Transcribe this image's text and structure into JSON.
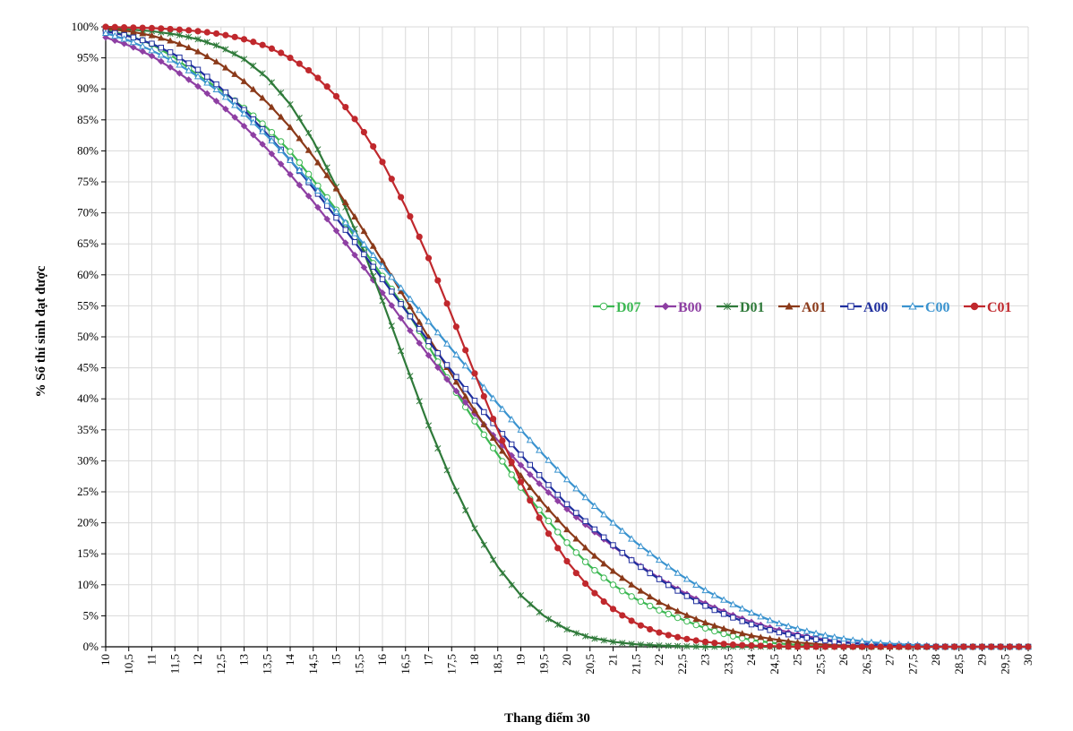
{
  "chart_data": {
    "type": "line",
    "title": "",
    "xlabel": "Thang điểm 30",
    "ylabel": "% Số thí sinh đạt được",
    "xlim": [
      10,
      30
    ],
    "ylim": [
      0,
      100
    ],
    "grid": true,
    "legend_position": "center-right",
    "x_ticks": [
      10,
      10.5,
      11,
      11.5,
      12,
      12.5,
      13,
      13.5,
      14,
      14.5,
      15,
      15.5,
      16,
      16.5,
      17,
      17.5,
      18,
      18.5,
      19,
      19.5,
      20,
      20.5,
      21,
      21.5,
      22,
      22.5,
      23,
      23.5,
      24,
      24.5,
      25,
      25.5,
      26,
      26.5,
      27,
      27.5,
      28,
      28.5,
      29,
      29.5,
      30
    ],
    "x_tick_labels": [
      "10",
      "10,5",
      "11",
      "11,5",
      "12",
      "12,5",
      "13",
      "13,5",
      "14",
      "14,5",
      "15",
      "15,5",
      "16",
      "16,5",
      "17",
      "17,5",
      "18",
      "18,5",
      "19",
      "19,5",
      "20",
      "20,5",
      "21",
      "21,5",
      "22",
      "22,5",
      "23",
      "23,5",
      "24",
      "24,5",
      "25",
      "25,5",
      "26",
      "26,5",
      "27",
      "27,5",
      "28",
      "28,5",
      "29",
      "29,5",
      "30"
    ],
    "y_ticks": [
      0,
      5,
      10,
      15,
      20,
      25,
      30,
      35,
      40,
      45,
      50,
      55,
      60,
      65,
      70,
      75,
      80,
      85,
      90,
      95,
      100
    ],
    "y_tick_labels": [
      "0%",
      "5%",
      "10%",
      "15%",
      "20%",
      "25%",
      "30%",
      "35%",
      "40%",
      "45%",
      "50%",
      "55%",
      "60%",
      "65%",
      "70%",
      "75%",
      "80%",
      "85%",
      "90%",
      "95%",
      "100%"
    ],
    "x": [
      10,
      10.5,
      11,
      11.5,
      12,
      12.5,
      13,
      13.5,
      14,
      14.5,
      15,
      15.5,
      16,
      16.5,
      17,
      17.5,
      18,
      18.5,
      19,
      19.5,
      20,
      20.5,
      21,
      21.5,
      22,
      22.5,
      23,
      23.5,
      24,
      24.5,
      25,
      25.5,
      26,
      26.5,
      27,
      27.5,
      28,
      28.5,
      29,
      29.5,
      30
    ],
    "series": [
      {
        "name": "D07",
        "color": "#3CB853",
        "marker": "circle-open",
        "values": [
          99.5,
          98.6,
          97.2,
          95.0,
          92.2,
          89.8,
          86.9,
          83.7,
          79.9,
          75.3,
          70.5,
          65.0,
          59.8,
          54.5,
          48.5,
          42.2,
          36.4,
          31.0,
          25.7,
          21.2,
          16.8,
          13.0,
          10.0,
          7.7,
          5.9,
          4.4,
          3.0,
          1.9,
          1.1,
          0.6,
          0.3,
          0.1,
          0.05,
          0,
          0,
          0,
          0,
          0,
          0,
          0,
          0
        ]
      },
      {
        "name": "B00",
        "color": "#8E3FA3",
        "marker": "diamond",
        "values": [
          98.3,
          97.0,
          95.3,
          93.0,
          90.4,
          87.4,
          84.0,
          80.3,
          76.2,
          71.8,
          67.1,
          62.2,
          57.1,
          52.0,
          47.0,
          42.2,
          37.6,
          33.3,
          29.3,
          25.6,
          22.2,
          19.1,
          16.2,
          13.5,
          11.1,
          8.9,
          7.0,
          5.4,
          4.0,
          2.9,
          2.0,
          1.3,
          0.8,
          0.5,
          0.3,
          0.2,
          0.1,
          0,
          0,
          0,
          0
        ]
      },
      {
        "name": "D01",
        "color": "#2F7A3A",
        "marker": "star",
        "values": [
          99.8,
          99.6,
          99.3,
          98.8,
          98.0,
          96.7,
          94.8,
          91.8,
          87.5,
          81.6,
          74.2,
          65.6,
          55.8,
          45.7,
          35.7,
          26.8,
          19.1,
          12.9,
          8.3,
          5.0,
          2.8,
          1.5,
          0.8,
          0.4,
          0.2,
          0.1,
          0,
          0,
          0,
          0,
          0,
          0,
          0,
          0,
          0,
          0,
          0,
          0,
          0,
          0,
          0
        ]
      },
      {
        "name": "A01",
        "color": "#8B3A1A",
        "marker": "triangle",
        "values": [
          99.7,
          99.3,
          98.6,
          97.5,
          96.0,
          93.9,
          91.2,
          87.8,
          83.8,
          79.1,
          73.9,
          68.2,
          62.2,
          56.1,
          49.9,
          43.9,
          38.1,
          32.6,
          27.6,
          23.0,
          18.9,
          15.3,
          12.2,
          9.5,
          7.2,
          5.4,
          3.9,
          2.7,
          1.8,
          1.2,
          0.7,
          0.4,
          0.2,
          0.1,
          0,
          0,
          0,
          0,
          0,
          0,
          0
        ]
      },
      {
        "name": "A00",
        "color": "#1F2F9E",
        "marker": "square-open",
        "values": [
          99.3,
          98.5,
          97.3,
          95.5,
          93.1,
          90.1,
          86.6,
          82.7,
          78.5,
          74.0,
          69.2,
          64.3,
          59.3,
          54.3,
          49.3,
          44.5,
          39.7,
          35.2,
          31.0,
          26.9,
          23.0,
          19.6,
          16.4,
          13.4,
          10.9,
          8.6,
          6.6,
          5.0,
          3.6,
          2.5,
          1.7,
          1.1,
          0.7,
          0.4,
          0.2,
          0.1,
          0,
          0,
          0,
          0,
          0
        ]
      },
      {
        "name": "C00",
        "color": "#3A93CF",
        "marker": "triangle-open",
        "values": [
          99.0,
          97.8,
          96.2,
          94.3,
          92.0,
          89.3,
          86.0,
          82.4,
          78.5,
          74.4,
          70.2,
          65.8,
          61.4,
          57.0,
          52.5,
          48.0,
          43.6,
          39.2,
          35.0,
          30.9,
          27.0,
          23.4,
          20.0,
          16.8,
          14.0,
          11.4,
          9.1,
          7.2,
          5.5,
          4.0,
          2.9,
          2.0,
          1.3,
          0.8,
          0.5,
          0.3,
          0.1,
          0,
          0,
          0,
          0
        ]
      },
      {
        "name": "C01",
        "color": "#C0282D",
        "marker": "circle",
        "values": [
          100,
          99.9,
          99.8,
          99.6,
          99.3,
          98.8,
          98.0,
          96.8,
          95.0,
          92.4,
          88.8,
          84.1,
          78.2,
          71.0,
          62.7,
          53.5,
          44.1,
          35.0,
          26.6,
          19.5,
          13.8,
          9.4,
          6.1,
          3.8,
          2.3,
          1.4,
          0.8,
          0.4,
          0.2,
          0.1,
          0,
          0,
          0,
          0,
          0,
          0,
          0,
          0,
          0,
          0,
          0
        ]
      }
    ]
  }
}
